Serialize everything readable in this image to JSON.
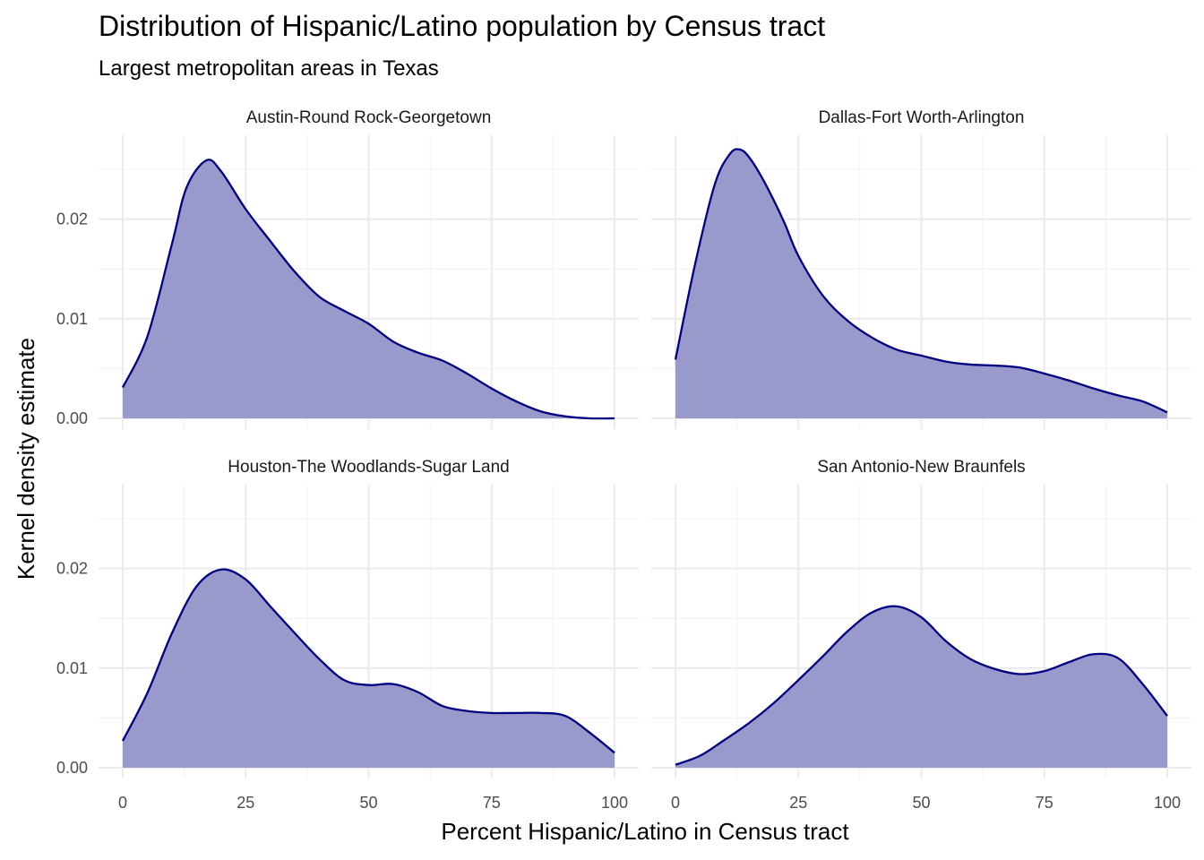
{
  "title": "Distribution of Hispanic/Latino population by Census tract",
  "subtitle": "Largest metropolitan areas in Texas",
  "chart_data": {
    "type": "area",
    "subtype": "faceted density",
    "title": "Distribution of Hispanic/Latino population by Census tract",
    "subtitle": "Largest metropolitan areas in Texas",
    "xlabel": "Percent Hispanic/Latino in Census tract",
    "ylabel": "Kernel density estimate",
    "xlim": [
      0,
      100
    ],
    "ylim": [
      0,
      0.027
    ],
    "x_ticks": [
      "0",
      "25",
      "50",
      "75",
      "100"
    ],
    "y_ticks": [
      "0.00",
      "0.01",
      "0.02"
    ],
    "y_tick_values": [
      0,
      0.01,
      0.02
    ],
    "x_tick_values": [
      0,
      25,
      50,
      75,
      100
    ],
    "grid": true,
    "fill_color": "#9999CC",
    "line_color": "#000080",
    "facets": [
      {
        "name": "Austin-Round Rock-Georgetown",
        "x": [
          0,
          5,
          10,
          13,
          17,
          20,
          25,
          30,
          35,
          40,
          45,
          50,
          55,
          60,
          65,
          70,
          75,
          80,
          85,
          90,
          95,
          100
        ],
        "y": [
          0.0031,
          0.0082,
          0.0175,
          0.0232,
          0.0259,
          0.0248,
          0.021,
          0.0178,
          0.0147,
          0.0122,
          0.0108,
          0.0095,
          0.0077,
          0.0066,
          0.0058,
          0.0045,
          0.003,
          0.0017,
          0.0007,
          0.0002,
          0.0,
          0.0
        ]
      },
      {
        "name": "Dallas-Fort Worth-Arlington",
        "x": [
          0,
          4,
          8,
          11,
          13,
          15,
          18,
          22,
          25,
          30,
          35,
          40,
          45,
          50,
          55,
          60,
          65,
          70,
          75,
          80,
          85,
          90,
          95,
          100
        ],
        "y": [
          0.0059,
          0.0155,
          0.0235,
          0.0265,
          0.027,
          0.0262,
          0.0238,
          0.0198,
          0.0163,
          0.0123,
          0.0098,
          0.0081,
          0.0069,
          0.0063,
          0.0057,
          0.0054,
          0.0053,
          0.0051,
          0.0045,
          0.0038,
          0.003,
          0.0023,
          0.0017,
          0.0006
        ]
      },
      {
        "name": "Houston-The Woodlands-Sugar Land",
        "x": [
          0,
          5,
          10,
          15,
          20,
          25,
          30,
          35,
          40,
          45,
          50,
          55,
          60,
          65,
          70,
          75,
          80,
          85,
          90,
          95,
          100
        ],
        "y": [
          0.0027,
          0.0075,
          0.0135,
          0.0182,
          0.0199,
          0.0189,
          0.0162,
          0.0135,
          0.0109,
          0.0088,
          0.0083,
          0.0084,
          0.0076,
          0.0062,
          0.0057,
          0.0055,
          0.0055,
          0.0055,
          0.0052,
          0.0035,
          0.0015
        ]
      },
      {
        "name": "San Antonio-New Braunfels",
        "x": [
          0,
          5,
          10,
          15,
          20,
          25,
          30,
          35,
          40,
          45,
          50,
          55,
          60,
          65,
          70,
          75,
          80,
          85,
          90,
          95,
          100
        ],
        "y": [
          0.0003,
          0.0012,
          0.0028,
          0.0045,
          0.0065,
          0.0088,
          0.0112,
          0.0137,
          0.0156,
          0.0162,
          0.0151,
          0.0127,
          0.0109,
          0.0099,
          0.0094,
          0.0097,
          0.0106,
          0.0114,
          0.011,
          0.0084,
          0.0052
        ]
      }
    ]
  }
}
